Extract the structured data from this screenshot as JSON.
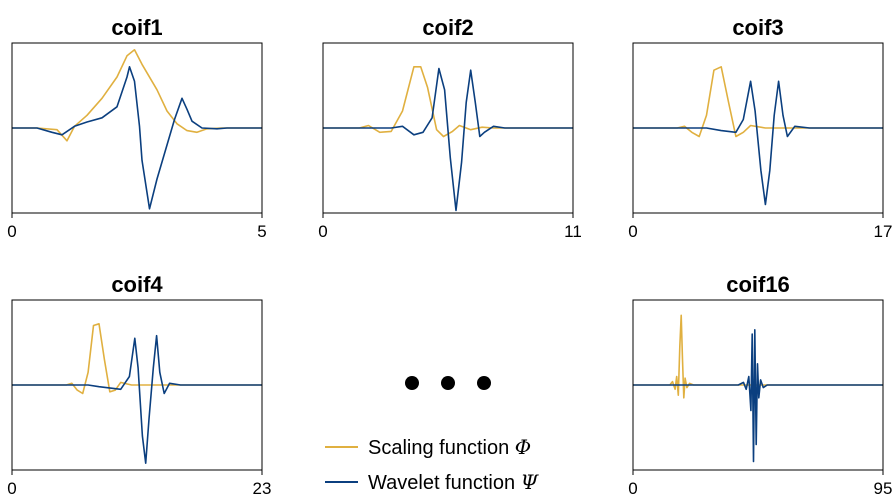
{
  "colors": {
    "scaling": "#E0B040",
    "wavelet": "#0B3F7F",
    "axes": "#000000"
  },
  "legend": {
    "scaling_label": "Scaling function ",
    "scaling_symbol": "Φ",
    "wavelet_label": "Wavelet function ",
    "wavelet_symbol": "Ψ"
  },
  "ellipsis": "• • •",
  "chart_data": [
    {
      "type": "line",
      "title": "coif1",
      "xlim": [
        0,
        5
      ],
      "x_ticks": [
        "0",
        "5"
      ],
      "grid": false,
      "series": [
        {
          "function": "scaling",
          "points": [
            [
              0,
              0
            ],
            [
              0.5,
              0
            ],
            [
              0.9,
              -0.02
            ],
            [
              1.1,
              -0.15
            ],
            [
              1.25,
              0.02
            ],
            [
              1.5,
              0.15
            ],
            [
              1.8,
              0.35
            ],
            [
              2.1,
              0.6
            ],
            [
              2.3,
              0.85
            ],
            [
              2.45,
              0.92
            ],
            [
              2.6,
              0.75
            ],
            [
              2.9,
              0.45
            ],
            [
              3.1,
              0.2
            ],
            [
              3.3,
              0.05
            ],
            [
              3.5,
              -0.03
            ],
            [
              3.7,
              -0.05
            ],
            [
              3.9,
              -0.01
            ],
            [
              4.2,
              0
            ],
            [
              5,
              0
            ]
          ]
        },
        {
          "function": "wavelet",
          "points": [
            [
              0,
              0
            ],
            [
              0.5,
              0
            ],
            [
              0.8,
              -0.05
            ],
            [
              1.0,
              -0.08
            ],
            [
              1.25,
              0.02
            ],
            [
              1.5,
              0.07
            ],
            [
              1.8,
              0.12
            ],
            [
              2.1,
              0.25
            ],
            [
              2.3,
              0.6
            ],
            [
              2.35,
              0.72
            ],
            [
              2.45,
              0.55
            ],
            [
              2.55,
              0.02
            ],
            [
              2.6,
              -0.38
            ],
            [
              2.75,
              -0.95
            ],
            [
              2.9,
              -0.6
            ],
            [
              3.1,
              -0.2
            ],
            [
              3.25,
              0.1
            ],
            [
              3.4,
              0.35
            ],
            [
              3.5,
              0.22
            ],
            [
              3.6,
              0.08
            ],
            [
              3.8,
              0
            ],
            [
              4.1,
              -0.01
            ],
            [
              4.3,
              0
            ],
            [
              5,
              0
            ]
          ]
        }
      ]
    },
    {
      "type": "line",
      "title": "coif2",
      "xlim": [
        0,
        11
      ],
      "x_ticks": [
        "0",
        "11"
      ],
      "grid": false,
      "series": [
        {
          "function": "scaling",
          "points": [
            [
              0,
              0
            ],
            [
              1.6,
              0
            ],
            [
              2.0,
              0.03
            ],
            [
              2.5,
              -0.05
            ],
            [
              3.0,
              -0.04
            ],
            [
              3.5,
              0.2
            ],
            [
              4.0,
              0.72
            ],
            [
              4.3,
              0.72
            ],
            [
              4.6,
              0.48
            ],
            [
              5.0,
              -0.02
            ],
            [
              5.3,
              -0.1
            ],
            [
              5.7,
              -0.04
            ],
            [
              6.0,
              0.03
            ],
            [
              6.5,
              -0.02
            ],
            [
              7.0,
              0.01
            ],
            [
              7.5,
              0
            ],
            [
              11,
              0
            ]
          ]
        },
        {
          "function": "wavelet",
          "points": [
            [
              0,
              0
            ],
            [
              3.0,
              0
            ],
            [
              3.5,
              0.02
            ],
            [
              4.0,
              -0.08
            ],
            [
              4.4,
              -0.05
            ],
            [
              4.8,
              0.12
            ],
            [
              5.1,
              0.7
            ],
            [
              5.35,
              0.45
            ],
            [
              5.6,
              -0.35
            ],
            [
              5.85,
              -0.97
            ],
            [
              6.1,
              -0.4
            ],
            [
              6.3,
              0.3
            ],
            [
              6.5,
              0.68
            ],
            [
              6.7,
              0.3
            ],
            [
              6.9,
              -0.1
            ],
            [
              7.1,
              -0.05
            ],
            [
              7.5,
              0.02
            ],
            [
              8.0,
              0
            ],
            [
              11,
              0
            ]
          ]
        }
      ]
    },
    {
      "type": "line",
      "title": "coif3",
      "xlim": [
        0,
        17
      ],
      "x_ticks": [
        "0",
        "17"
      ],
      "grid": false,
      "series": [
        {
          "function": "scaling",
          "points": [
            [
              0,
              0
            ],
            [
              3.0,
              0
            ],
            [
              3.5,
              0.02
            ],
            [
              4.0,
              -0.05
            ],
            [
              4.5,
              -0.1
            ],
            [
              5.0,
              0.15
            ],
            [
              5.5,
              0.68
            ],
            [
              6.0,
              0.72
            ],
            [
              6.5,
              0.3
            ],
            [
              7.0,
              -0.1
            ],
            [
              7.5,
              -0.05
            ],
            [
              8.0,
              0.03
            ],
            [
              9.0,
              0
            ],
            [
              17,
              0
            ]
          ]
        },
        {
          "function": "wavelet",
          "points": [
            [
              0,
              0
            ],
            [
              5.0,
              0
            ],
            [
              6.0,
              -0.03
            ],
            [
              7.0,
              -0.05
            ],
            [
              7.5,
              0.1
            ],
            [
              8.0,
              0.55
            ],
            [
              8.3,
              0.2
            ],
            [
              8.7,
              -0.5
            ],
            [
              9.0,
              -0.9
            ],
            [
              9.3,
              -0.5
            ],
            [
              9.6,
              0.15
            ],
            [
              9.9,
              0.55
            ],
            [
              10.2,
              0.15
            ],
            [
              10.5,
              -0.1
            ],
            [
              11.0,
              0.02
            ],
            [
              12.0,
              0
            ],
            [
              17,
              0
            ]
          ]
        }
      ]
    },
    {
      "type": "line",
      "title": "coif4",
      "xlim": [
        0,
        23
      ],
      "x_ticks": [
        "0",
        "23"
      ],
      "grid": false,
      "series": [
        {
          "function": "scaling",
          "points": [
            [
              0,
              0
            ],
            [
              5.0,
              0
            ],
            [
              5.5,
              0.02
            ],
            [
              6.0,
              -0.06
            ],
            [
              6.5,
              -0.1
            ],
            [
              7.0,
              0.15
            ],
            [
              7.5,
              0.7
            ],
            [
              8.0,
              0.72
            ],
            [
              8.5,
              0.3
            ],
            [
              9.0,
              -0.08
            ],
            [
              9.5,
              -0.06
            ],
            [
              10.0,
              0.03
            ],
            [
              11.0,
              0
            ],
            [
              23,
              0
            ]
          ]
        },
        {
          "function": "wavelet",
          "points": [
            [
              0,
              0
            ],
            [
              7.0,
              0
            ],
            [
              8.0,
              -0.02
            ],
            [
              10.0,
              -0.05
            ],
            [
              10.8,
              0.1
            ],
            [
              11.3,
              0.55
            ],
            [
              11.6,
              0.2
            ],
            [
              12.0,
              -0.6
            ],
            [
              12.3,
              -0.92
            ],
            [
              12.6,
              -0.4
            ],
            [
              13.0,
              0.2
            ],
            [
              13.3,
              0.58
            ],
            [
              13.6,
              0.15
            ],
            [
              14.0,
              -0.1
            ],
            [
              14.5,
              0.02
            ],
            [
              15.5,
              0
            ],
            [
              23,
              0
            ]
          ]
        }
      ]
    },
    {
      "type": "line",
      "title": "coif16",
      "xlim": [
        0,
        95
      ],
      "x_ticks": [
        "0",
        "95"
      ],
      "grid": false,
      "series": [
        {
          "function": "scaling",
          "points": [
            [
              0,
              0
            ],
            [
              14.0,
              0
            ],
            [
              15.0,
              0.04
            ],
            [
              16.0,
              -0.05
            ],
            [
              16.6,
              0.1
            ],
            [
              17.2,
              -0.12
            ],
            [
              17.8,
              0.45
            ],
            [
              18.3,
              0.82
            ],
            [
              18.8,
              0.3
            ],
            [
              19.3,
              -0.15
            ],
            [
              19.8,
              0.08
            ],
            [
              20.5,
              -0.03
            ],
            [
              21.5,
              0.02
            ],
            [
              23,
              0
            ],
            [
              95,
              0
            ]
          ]
        },
        {
          "function": "wavelet",
          "points": [
            [
              0,
              0
            ],
            [
              40.0,
              0
            ],
            [
              42.0,
              0.03
            ],
            [
              43.0,
              -0.05
            ],
            [
              44.0,
              0.1
            ],
            [
              44.8,
              -0.3
            ],
            [
              45.3,
              0.6
            ],
            [
              45.8,
              -0.9
            ],
            [
              46.3,
              0.65
            ],
            [
              46.8,
              -0.7
            ],
            [
              47.3,
              0.25
            ],
            [
              47.8,
              -0.15
            ],
            [
              48.5,
              0.06
            ],
            [
              49.5,
              -0.03
            ],
            [
              51,
              0
            ],
            [
              95,
              0
            ]
          ]
        }
      ]
    }
  ]
}
